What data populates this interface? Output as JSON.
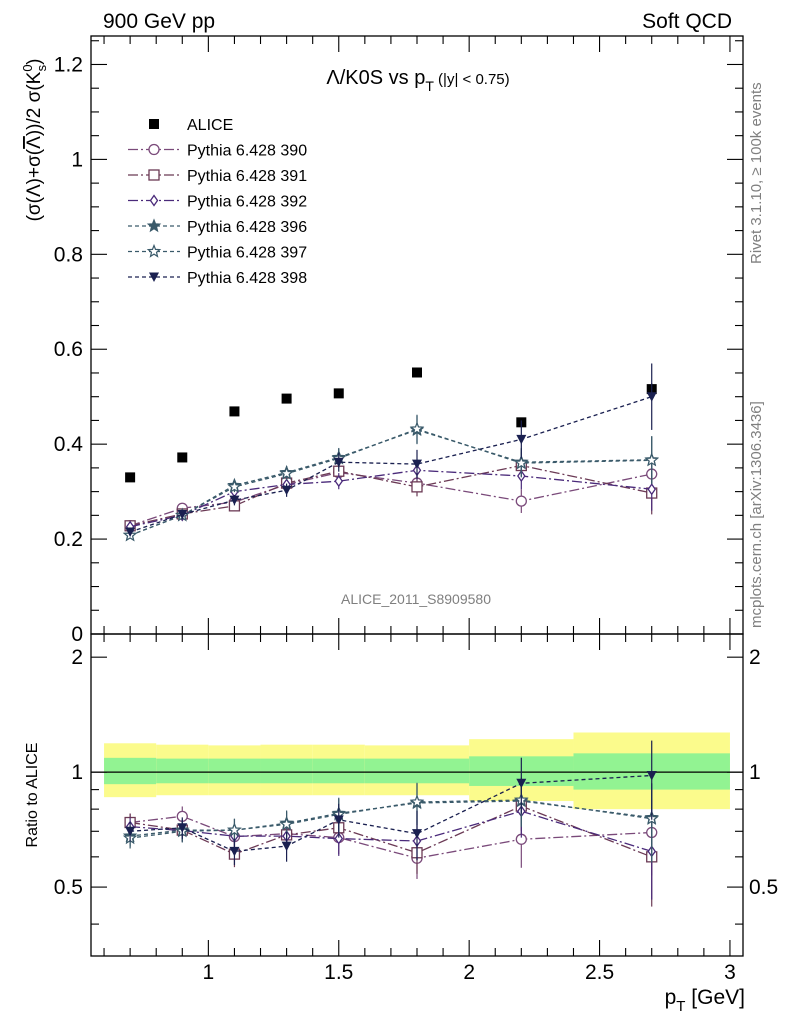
{
  "header": {
    "left": "900 GeV pp",
    "right": "Soft QCD"
  },
  "side_labels": {
    "rivet": "Rivet 3.1.10, ≥ 100k events",
    "mcplots": "mcplots.cern.ch [arXiv:1306.3436]"
  },
  "chart_data": [
    {
      "type": "scatter",
      "title": "Λ/K0S vs pT (|y| < 0.75)",
      "title_parts": {
        "main": "Λ/K0S vs p",
        "sub": "T",
        "tail": " (|y| < 0.75)"
      },
      "ylabel": "(σ(Λ)+σ(Λ))/2 σ(K⁰s)",
      "xlabel": "pT [GeV]",
      "watermark": "ALICE_2011_S8909580",
      "xlim": [
        0.55,
        3.05
      ],
      "ylim": [
        0,
        1.26
      ],
      "yticks": [
        0,
        0.2,
        0.4,
        0.6,
        0.8,
        1,
        1.2
      ],
      "ytick_labels": [
        "0",
        "0.2",
        "0.4",
        "0.6",
        "0.8",
        "1",
        "1.2"
      ],
      "legend_position": "top-left",
      "x": [
        0.7,
        0.9,
        1.1,
        1.3,
        1.5,
        1.8,
        2.2,
        2.7
      ],
      "series": [
        {
          "name": "ALICE",
          "marker": "square-filled",
          "color": "#000000",
          "dash": "none",
          "values": [
            0.33,
            0.372,
            0.469,
            0.496,
            0.507,
            0.551,
            0.446,
            0.516
          ],
          "errors": [
            0.004,
            0.004,
            0.005,
            0.005,
            0.006,
            0.007,
            0.008,
            0.012
          ]
        },
        {
          "name": "Pythia 6.428 390",
          "marker": "circle-open",
          "color": "#7a4a7a",
          "dash": "10,3,2,3",
          "values": [
            0.228,
            0.265,
            0.278,
            0.315,
            0.34,
            0.318,
            0.28,
            0.337
          ],
          "errors": [
            0.006,
            0.008,
            0.01,
            0.013,
            0.017,
            0.02,
            0.025,
            0.045
          ]
        },
        {
          "name": "Pythia 6.428 391",
          "marker": "square-open",
          "color": "#6b3a55",
          "dash": "10,3,2,3",
          "values": [
            0.228,
            0.253,
            0.27,
            0.318,
            0.343,
            0.31,
            0.355,
            0.297
          ],
          "errors": [
            0.006,
            0.008,
            0.01,
            0.013,
            0.017,
            0.02,
            0.028,
            0.045
          ]
        },
        {
          "name": "Pythia 6.428 392",
          "marker": "diamond-open",
          "color": "#4a2a7a",
          "dash": "10,3,2,3",
          "values": [
            0.226,
            0.25,
            0.3,
            0.315,
            0.322,
            0.345,
            0.333,
            0.305
          ],
          "errors": [
            0.006,
            0.008,
            0.01,
            0.013,
            0.017,
            0.02,
            0.028,
            0.045
          ]
        },
        {
          "name": "Pythia 6.428 396",
          "marker": "star-filled",
          "color": "#3a5a6a",
          "dash": "4,3",
          "values": [
            0.208,
            0.25,
            0.313,
            0.34,
            0.372,
            0.43,
            0.362,
            0.367
          ],
          "errors": [
            0.006,
            0.008,
            0.011,
            0.014,
            0.02,
            0.03,
            0.03,
            0.05
          ]
        },
        {
          "name": "Pythia 6.428 397",
          "marker": "star-open",
          "color": "#3a5a6a",
          "dash": "4,3",
          "values": [
            0.208,
            0.25,
            0.31,
            0.338,
            0.37,
            0.432,
            0.36,
            0.366
          ],
          "errors": [
            0.006,
            0.008,
            0.011,
            0.014,
            0.02,
            0.03,
            0.03,
            0.05
          ]
        },
        {
          "name": "Pythia 6.428 398",
          "marker": "triangle-down-filled",
          "color": "#1a2050",
          "dash": "4,3",
          "values": [
            0.215,
            0.252,
            0.282,
            0.303,
            0.362,
            0.358,
            0.41,
            0.5
          ],
          "errors": [
            0.006,
            0.008,
            0.011,
            0.014,
            0.02,
            0.03,
            0.04,
            0.07
          ]
        }
      ]
    },
    {
      "type": "scatter",
      "ylabel": "Ratio to ALICE",
      "xlabel": "pT [GeV]",
      "xlim": [
        0.55,
        3.05
      ],
      "ylim": [
        0.33,
        2.3
      ],
      "yscale": "log",
      "yticks": [
        0.5,
        1,
        2
      ],
      "ytick_labels": [
        "0.5",
        "1",
        "2"
      ],
      "xticks": [
        1,
        1.5,
        2,
        2.5,
        3
      ],
      "xtick_labels": [
        "1",
        "1.5",
        "2",
        "2.5",
        "3"
      ],
      "bands": {
        "green_color": "#92f392",
        "yellow_color": "#fbfb8c",
        "bins": [
          [
            0.6,
            0.8
          ],
          [
            0.8,
            1.0
          ],
          [
            1.0,
            1.2
          ],
          [
            1.2,
            1.4
          ],
          [
            1.4,
            1.6
          ],
          [
            1.6,
            2.0
          ],
          [
            2.0,
            2.4
          ],
          [
            2.4,
            3.0
          ]
        ],
        "green": [
          [
            0.93,
            1.09
          ],
          [
            0.935,
            1.085
          ],
          [
            0.935,
            1.085
          ],
          [
            0.935,
            1.085
          ],
          [
            0.935,
            1.085
          ],
          [
            0.935,
            1.085
          ],
          [
            0.92,
            1.1
          ],
          [
            0.9,
            1.12
          ]
        ],
        "yellow": [
          [
            0.86,
            1.19
          ],
          [
            0.87,
            1.18
          ],
          [
            0.87,
            1.175
          ],
          [
            0.87,
            1.18
          ],
          [
            0.87,
            1.18
          ],
          [
            0.87,
            1.175
          ],
          [
            0.84,
            1.22
          ],
          [
            0.8,
            1.27
          ]
        ]
      },
      "series": [
        {
          "name": "Pythia 6.428 390",
          "values": [
            0.738,
            0.766,
            0.678,
            0.69,
            0.674,
            0.595,
            0.667,
            0.695
          ]
        },
        {
          "name": "Pythia 6.428 391",
          "values": [
            0.738,
            0.705,
            0.61,
            0.685,
            0.715,
            0.615,
            0.815,
            0.6
          ]
        },
        {
          "name": "Pythia 6.428 392",
          "values": [
            0.72,
            0.703,
            0.68,
            0.68,
            0.67,
            0.66,
            0.79,
            0.62
          ]
        },
        {
          "name": "Pythia 6.428 396",
          "values": [
            0.68,
            0.705,
            0.705,
            0.735,
            0.78,
            0.83,
            0.84,
            0.76
          ]
        },
        {
          "name": "Pythia 6.428 397",
          "values": [
            0.672,
            0.7,
            0.705,
            0.73,
            0.775,
            0.835,
            0.845,
            0.755
          ]
        },
        {
          "name": "Pythia 6.428 398",
          "values": [
            0.7,
            0.715,
            0.62,
            0.64,
            0.75,
            0.69,
            0.935,
            0.98
          ]
        }
      ]
    }
  ]
}
